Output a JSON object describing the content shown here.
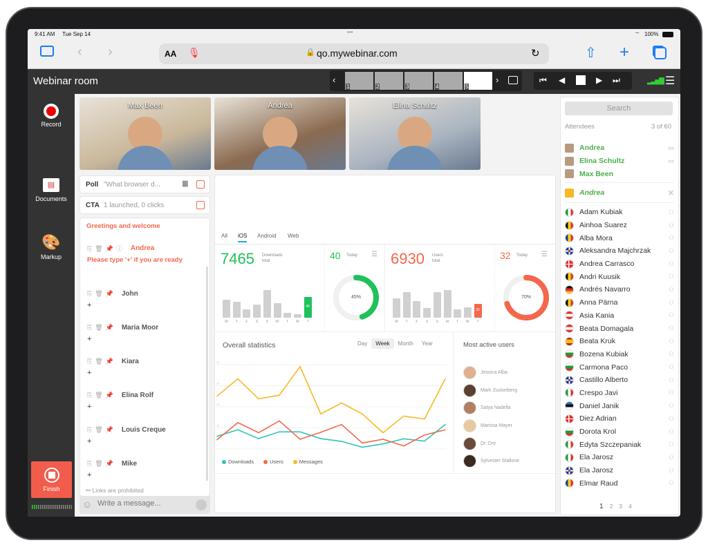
{
  "status": {
    "time": "9:41 AM",
    "date": "Tue Sep 14",
    "battery": "100%"
  },
  "browser": {
    "text_size": "AA",
    "url": "qo.mywebinar.com"
  },
  "header": {
    "title": "Webinar room",
    "slides": [
      "1",
      "2",
      "3",
      "4",
      "5"
    ],
    "active_slide": 5
  },
  "sidebar": {
    "record": "Record",
    "documents": "Documents",
    "markup": "Markup",
    "finish": "Finish"
  },
  "videos": [
    {
      "name": "Max Been",
      "color": "#c9b79a"
    },
    {
      "name": "Andrea",
      "color": "#8a6a50"
    },
    {
      "name": "Elina Schultz",
      "color": "#aab4c0"
    }
  ],
  "poll": {
    "label": "Poll",
    "text": "\"What browser d..."
  },
  "cta": {
    "label": "CTA",
    "text": "1 launched, 0 clicks"
  },
  "chat": {
    "greeting": "Greetings and welcome",
    "messages": [
      {
        "author": "Andrea",
        "text": "Please type '+' if you are ready",
        "host": true
      },
      {
        "author": "John",
        "text": "+"
      },
      {
        "author": "Maria Moor",
        "text": "+"
      },
      {
        "author": "Kiara",
        "text": "+"
      },
      {
        "author": "Elina Rolf",
        "text": "+"
      },
      {
        "author": "Louis Creque",
        "text": "+"
      },
      {
        "author": "Mike",
        "text": "+"
      }
    ],
    "notice": "Links are prohibited",
    "placeholder": "Write a message..."
  },
  "stats": {
    "tabs": [
      "All",
      "iOS",
      "Android",
      "Web"
    ],
    "active_tab": "iOS",
    "downloads": {
      "total": "7465",
      "label1": "Downloads",
      "label2": "total",
      "today": "40",
      "today_label": "Today",
      "percent": 45,
      "percent_label": "45%",
      "color": "#1fc15a",
      "days": [
        "W",
        "T",
        "F",
        "S",
        "S",
        "M",
        "T",
        "W",
        "T"
      ],
      "values": [
        34,
        30,
        16,
        25,
        53,
        28,
        9,
        6,
        40
      ]
    },
    "users": {
      "total": "6930",
      "label1": "Users",
      "label2": "total",
      "today": "32",
      "today_label": "Today",
      "percent": 70,
      "percent_label": "70%",
      "color": "#f4674b",
      "days": [
        "W",
        "T",
        "F",
        "S",
        "S",
        "M",
        "T",
        "W",
        "T"
      ],
      "values": [
        46,
        60,
        39,
        23,
        60,
        65,
        19,
        24,
        32
      ]
    },
    "overall": {
      "title": "Overall statistics",
      "periods": [
        "Day",
        "Week",
        "Month",
        "Year"
      ],
      "active_period": "Week"
    },
    "active_users": {
      "title": "Most active users",
      "users": [
        "Jessica Alba",
        "Mark Zuckerberg",
        "Satya Nadella",
        "Marissa Mayer",
        "Dr. Dre",
        "Sylvester Stallone"
      ]
    }
  },
  "chart_data": {
    "type": "line",
    "title": "Overall statistics",
    "x": [
      1,
      2,
      3,
      4,
      5,
      6,
      7,
      8,
      9,
      10,
      11,
      12
    ],
    "ylim": [
      0,
      4000
    ],
    "yticks": [
      "1k",
      "2k",
      "3k",
      "4k"
    ],
    "grid": true,
    "legend": "bottom-left",
    "series": [
      {
        "name": "Downloads",
        "color": "#2ec4b6",
        "values": [
          600,
          910,
          490,
          810,
          810,
          490,
          360,
          80,
          240,
          480,
          370,
          1160
        ]
      },
      {
        "name": "Users",
        "color": "#f4674b",
        "values": [
          440,
          1250,
          770,
          1330,
          460,
          790,
          1160,
          280,
          460,
          140,
          660,
          910
        ]
      },
      {
        "name": "Messages",
        "color": "#f7b924",
        "values": [
          2510,
          3330,
          2380,
          2550,
          3910,
          1660,
          2180,
          1660,
          770,
          1560,
          1420,
          3330
        ]
      }
    ]
  },
  "attendees": {
    "search": "Search",
    "label": "Attendees",
    "count": "3 of 60",
    "presenters": [
      {
        "name": "Andrea"
      },
      {
        "name": "Elina Schultz"
      },
      {
        "name": "Max Been"
      }
    ],
    "invite": "Andrea",
    "list": [
      {
        "name": "Adam Kubiak",
        "flag": "it"
      },
      {
        "name": "Ainhoa Suarez",
        "flag": "be"
      },
      {
        "name": "Alba Mora",
        "flag": "ad"
      },
      {
        "name": "Aleksandra Majchrzak",
        "flag": "gb"
      },
      {
        "name": "Andrea Carrasco",
        "flag": "dk"
      },
      {
        "name": "Andri Kuusik",
        "flag": "be"
      },
      {
        "name": "Andrés Navarro",
        "flag": "de"
      },
      {
        "name": "Anna Pärna",
        "flag": "be"
      },
      {
        "name": "Asia Kania",
        "flag": "at"
      },
      {
        "name": "Beata Domagala",
        "flag": "at"
      },
      {
        "name": "Beata Kruk",
        "flag": "es"
      },
      {
        "name": "Bozena Kubiak",
        "flag": "bg"
      },
      {
        "name": "Carmona Paco",
        "flag": "bg"
      },
      {
        "name": "Castillo Alberto",
        "flag": "gb"
      },
      {
        "name": "Crespo Javi",
        "flag": "it"
      },
      {
        "name": "Daniel Janik",
        "flag": "ee"
      },
      {
        "name": "Diez Adrian",
        "flag": "dk"
      },
      {
        "name": "Dorota Krol",
        "flag": "bg"
      },
      {
        "name": "Edyta Szczepaniak",
        "flag": "it"
      },
      {
        "name": "Ela Jarosz",
        "flag": "it"
      },
      {
        "name": "Ela Jarosz",
        "flag": "gb"
      },
      {
        "name": "Elmar Raud",
        "flag": "ad"
      }
    ],
    "pages": [
      "1",
      "2",
      "3",
      "4"
    ],
    "current_page": "1"
  }
}
